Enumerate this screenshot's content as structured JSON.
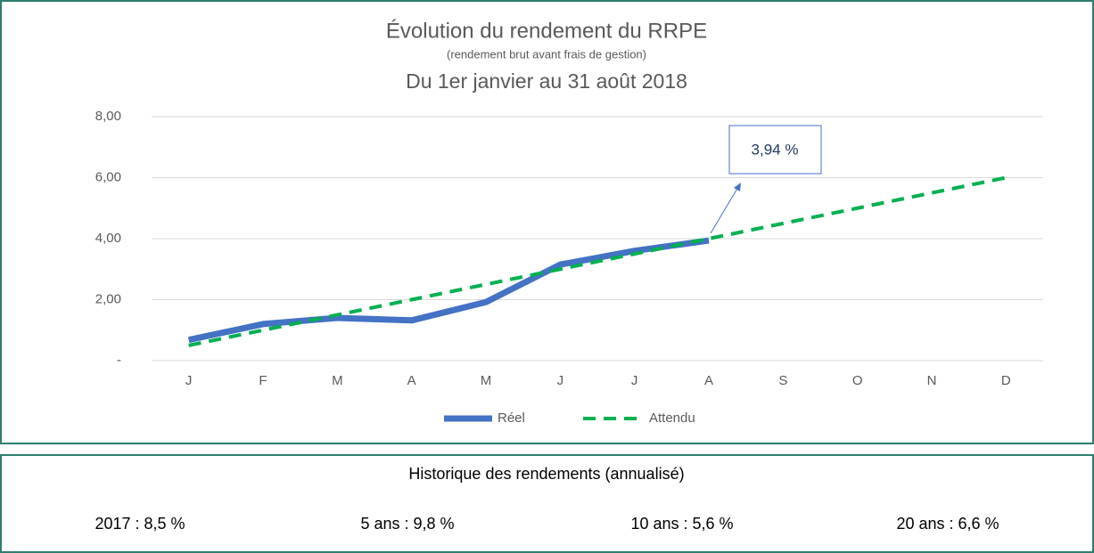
{
  "chart_data": {
    "type": "line",
    "title": "Évolution du rendement du RRPE",
    "subtitle": "(rendement brut avant frais de gestion)",
    "period": "Du 1er janvier au 31 août 2018",
    "categories": [
      "J",
      "F",
      "M",
      "A",
      "M",
      "J",
      "J",
      "A",
      "S",
      "O",
      "N",
      "D"
    ],
    "series": [
      {
        "name": "Réel",
        "color": "#4472c4",
        "style": "solid",
        "values": [
          0.68,
          1.2,
          1.4,
          1.32,
          1.92,
          3.15,
          3.6,
          3.94,
          null,
          null,
          null,
          null
        ]
      },
      {
        "name": "Attendu",
        "color": "#00b050",
        "style": "dashed",
        "values": [
          0.5,
          1.0,
          1.5,
          2.0,
          2.5,
          3.0,
          3.5,
          4.0,
          4.5,
          5.0,
          5.5,
          6.0
        ]
      }
    ],
    "ylim": [
      0,
      8
    ],
    "yticks": [
      {
        "value": 0,
        "label": "-"
      },
      {
        "value": 2,
        "label": "2,00"
      },
      {
        "value": 4,
        "label": "4,00"
      },
      {
        "value": 6,
        "label": "6,00"
      },
      {
        "value": 8,
        "label": "8,00"
      }
    ],
    "grid": true,
    "legend": "bottom",
    "annotation": "3,94 %"
  },
  "history": {
    "title": "Historique des rendements (annualisé)",
    "items": [
      "2017 : 8,5 %",
      "5 ans : 9,8 %",
      "10 ans : 5,6 %",
      "20 ans : 6,6 %"
    ]
  }
}
